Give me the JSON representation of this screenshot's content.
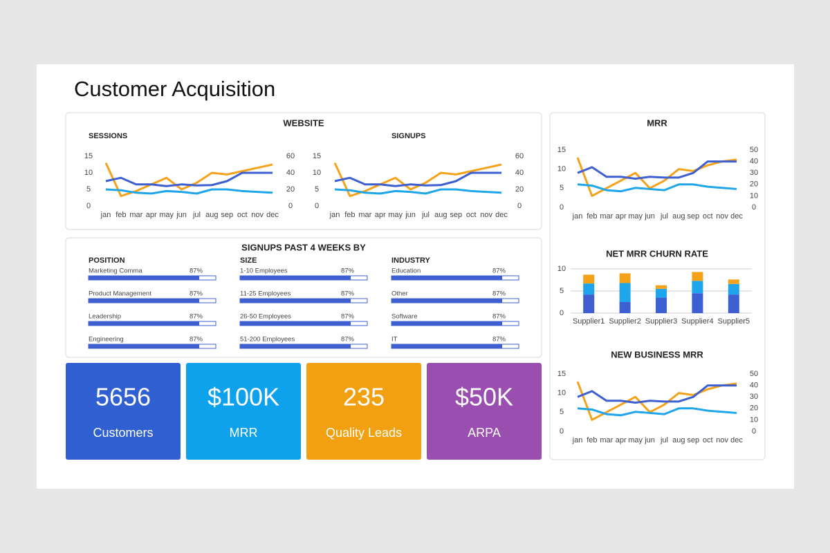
{
  "title": "Customer Acquisition",
  "website_title": "WEBSITE",
  "chart_data": [
    {
      "type": "line",
      "title": "SESSIONS",
      "categories": [
        "jan",
        "feb",
        "mar",
        "apr",
        "may",
        "jun",
        "jul",
        "aug",
        "sep",
        "oct",
        "nov",
        "dec"
      ],
      "ylim": [
        0,
        15
      ],
      "yticks": [
        0,
        5,
        10,
        15
      ],
      "y2lim": [
        0,
        60
      ],
      "y2ticks": [
        0,
        20,
        40,
        60
      ],
      "series": [
        {
          "color": "#f5a21b",
          "values": [
            13,
            3,
            4.5,
            6.5,
            8.5,
            5,
            7,
            10,
            9.5,
            10.5,
            11.5,
            12.5
          ]
        },
        {
          "color": "#3d5fd1",
          "values": [
            7.5,
            8.5,
            6.5,
            6.5,
            6,
            6.5,
            6.2,
            6.3,
            7.5,
            10,
            10,
            10
          ]
        },
        {
          "color": "#1ea5ea",
          "axis": "y2",
          "values": [
            20,
            19,
            16,
            15,
            18,
            17,
            15,
            20,
            20,
            18,
            17,
            16
          ]
        }
      ]
    },
    {
      "type": "line",
      "title": "SIGNUPS",
      "categories": [
        "jan",
        "feb",
        "mar",
        "apr",
        "may",
        "jun",
        "jul",
        "aug",
        "sep",
        "oct",
        "nov",
        "dec"
      ],
      "ylim": [
        0,
        15
      ],
      "yticks": [
        0,
        5,
        10,
        15
      ],
      "y2lim": [
        0,
        60
      ],
      "y2ticks": [
        0,
        20,
        40,
        60
      ],
      "series": [
        {
          "color": "#f5a21b",
          "values": [
            13,
            3,
            4.5,
            6.5,
            8.5,
            5,
            7,
            10,
            9.5,
            10.5,
            11.5,
            12.5
          ]
        },
        {
          "color": "#3d5fd1",
          "values": [
            7.5,
            8.5,
            6.5,
            6.5,
            6,
            6.5,
            6.2,
            6.3,
            7.5,
            10,
            10,
            10
          ]
        },
        {
          "color": "#1ea5ea",
          "axis": "y2",
          "values": [
            20,
            19,
            16,
            15,
            18,
            17,
            15,
            20,
            20,
            18,
            17,
            16
          ]
        }
      ]
    },
    {
      "type": "line",
      "title": "MRR",
      "categories": [
        "jan",
        "feb",
        "mar",
        "apr",
        "may",
        "jun",
        "jul",
        "aug",
        "sep",
        "oct",
        "nov",
        "dec"
      ],
      "ylim": [
        0,
        15
      ],
      "yticks": [
        0,
        5,
        10,
        15
      ],
      "y2lim": [
        0,
        50
      ],
      "y2ticks": [
        0,
        10,
        20,
        30,
        40,
        50
      ],
      "series": [
        {
          "color": "#f5a21b",
          "values": [
            13,
            3,
            5,
            7,
            9,
            5,
            7,
            10,
            9.5,
            11,
            12,
            12.5
          ]
        },
        {
          "color": "#3d5fd1",
          "values": [
            9,
            10.5,
            8,
            8,
            7.5,
            8,
            7.8,
            7.8,
            9,
            12,
            12,
            12
          ]
        },
        {
          "color": "#1ea5ea",
          "axis": "y2",
          "values": [
            20,
            19,
            15,
            14,
            17,
            16,
            15,
            20,
            20,
            18,
            17,
            16
          ]
        }
      ]
    },
    {
      "type": "line",
      "title": "NEW BUSINESS MRR",
      "categories": [
        "jan",
        "feb",
        "mar",
        "apr",
        "may",
        "jun",
        "jul",
        "aug",
        "sep",
        "oct",
        "nov",
        "dec"
      ],
      "ylim": [
        0,
        15
      ],
      "yticks": [
        0,
        5,
        10,
        15
      ],
      "y2lim": [
        0,
        50
      ],
      "y2ticks": [
        0,
        10,
        20,
        30,
        40,
        50
      ],
      "series": [
        {
          "color": "#f5a21b",
          "values": [
            13,
            3,
            5,
            7,
            9,
            5,
            7,
            10,
            9.5,
            11,
            12,
            12.5
          ]
        },
        {
          "color": "#3d5fd1",
          "values": [
            9,
            10.5,
            8,
            8,
            7.5,
            8,
            7.8,
            7.8,
            9,
            12,
            12,
            12
          ]
        },
        {
          "color": "#1ea5ea",
          "axis": "y2",
          "values": [
            20,
            19,
            15,
            14,
            17,
            16,
            15,
            20,
            20,
            18,
            17,
            16
          ]
        }
      ]
    },
    {
      "type": "bar",
      "stacked": true,
      "title": "NET MRR CHURN RATE",
      "categories": [
        "Supplier1",
        "Supplier2",
        "Supplier3",
        "Supplier4",
        "Supplier5"
      ],
      "ylim": [
        0,
        10
      ],
      "yticks": [
        0,
        5,
        10
      ],
      "grid": true,
      "series": [
        {
          "color": "#3d5fd1",
          "values": [
            4.2,
            2.5,
            3.5,
            4.5,
            4.2
          ]
        },
        {
          "color": "#1ea5ea",
          "values": [
            2.5,
            4.3,
            2,
            2.8,
            2.4
          ]
        },
        {
          "color": "#f5a21b",
          "values": [
            2,
            2.2,
            0.8,
            2,
            1
          ]
        }
      ]
    }
  ],
  "signups_by": {
    "title": "SIGNUPS PAST 4 WEEKS BY",
    "groups": [
      {
        "title": "POSITION",
        "items": [
          {
            "label": "Marketing Comma",
            "value": 87,
            "value_label": "87%"
          },
          {
            "label": "Product Management",
            "value": 87,
            "value_label": "87%"
          },
          {
            "label": "Leadership",
            "value": 87,
            "value_label": "87%"
          },
          {
            "label": "Engineering",
            "value": 87,
            "value_label": "87%"
          }
        ]
      },
      {
        "title": "SIZE",
        "items": [
          {
            "label": "1-10 Employees",
            "value": 87,
            "value_label": "87%"
          },
          {
            "label": "11-25 Employees",
            "value": 87,
            "value_label": "87%"
          },
          {
            "label": "26-50 Employees",
            "value": 87,
            "value_label": "87%"
          },
          {
            "label": "51-200 Employees",
            "value": 87,
            "value_label": "87%"
          }
        ]
      },
      {
        "title": "INDUSTRY",
        "items": [
          {
            "label": "Education",
            "value": 87,
            "value_label": "87%"
          },
          {
            "label": "Other",
            "value": 87,
            "value_label": "87%"
          },
          {
            "label": "Software",
            "value": 87,
            "value_label": "87%"
          },
          {
            "label": "IT",
            "value": 87,
            "value_label": "87%"
          }
        ]
      }
    ]
  },
  "kpis": [
    {
      "value": "5656",
      "label": "Customers",
      "color": "#2f5fd0"
    },
    {
      "value": "$100K",
      "label": "MRR",
      "color": "#0ea2ec"
    },
    {
      "value": "235",
      "label": "Quality Leads",
      "color": "#f0a010"
    },
    {
      "value": "$50K",
      "label": "ARPA",
      "color": "#9a4fb0"
    }
  ]
}
